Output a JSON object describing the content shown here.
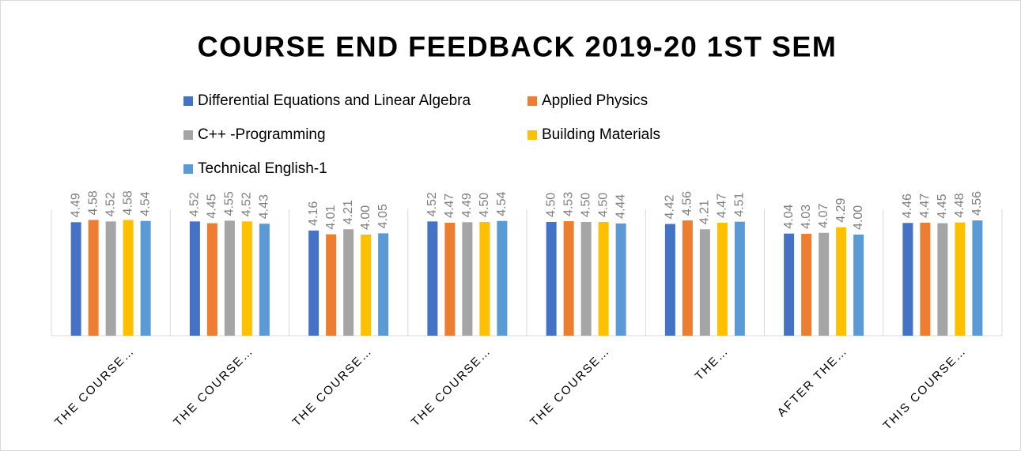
{
  "chart_data": {
    "type": "bar",
    "title": "COURSE END FEEDBACK 2019-20 1ST SEM",
    "categories": [
      "THE COURSE…",
      "THE COURSE…",
      "THE COURSE…",
      "THE COURSE…",
      "THE COURSE…",
      "THE…",
      "AFTER THE…",
      "THIS COURSE…"
    ],
    "series": [
      {
        "name": "Differential Equations and Linear Algebra",
        "color": "#4472c4",
        "values": [
          4.49,
          4.52,
          4.16,
          4.52,
          4.5,
          4.42,
          4.04,
          4.46
        ],
        "value_labels": [
          "4.49",
          "4.52",
          "4.16",
          "4.52",
          "4.50",
          "4.42",
          "4.04",
          "4.46"
        ]
      },
      {
        "name": "Applied Physics",
        "color": "#ed7d31",
        "values": [
          4.58,
          4.45,
          4.01,
          4.47,
          4.53,
          4.56,
          4.03,
          4.47
        ],
        "value_labels": [
          "4.58",
          "4.45",
          "4.01",
          "4.47",
          "4.53",
          "4.56",
          "4.03",
          "4.47"
        ]
      },
      {
        "name": "C++ -Programming",
        "color": "#a5a5a5",
        "values": [
          4.52,
          4.55,
          4.21,
          4.49,
          4.5,
          4.21,
          4.07,
          4.45
        ],
        "value_labels": [
          "4.52",
          "4.55",
          "4.21",
          "4.49",
          "4.50",
          "4.21",
          "4.07",
          "4.45"
        ]
      },
      {
        "name": "Building Materials",
        "color": "#ffc000",
        "values": [
          4.58,
          4.52,
          4.0,
          4.5,
          4.5,
          4.47,
          4.29,
          4.48
        ],
        "value_labels": [
          "4.58",
          "4.52",
          "4.00",
          "4.50",
          "4.50",
          "4.47",
          "4.29",
          "4.48"
        ]
      },
      {
        "name": "Technical English-1",
        "color": "#5b9bd5",
        "values": [
          4.54,
          4.43,
          4.05,
          4.54,
          4.44,
          4.51,
          4.0,
          4.56
        ],
        "value_labels": [
          "4.54",
          "4.43",
          "4.05",
          "4.54",
          "4.44",
          "4.51",
          "4.00",
          "4.56"
        ]
      }
    ],
    "ylim": [
      0,
      5
    ],
    "legend": "top"
  }
}
